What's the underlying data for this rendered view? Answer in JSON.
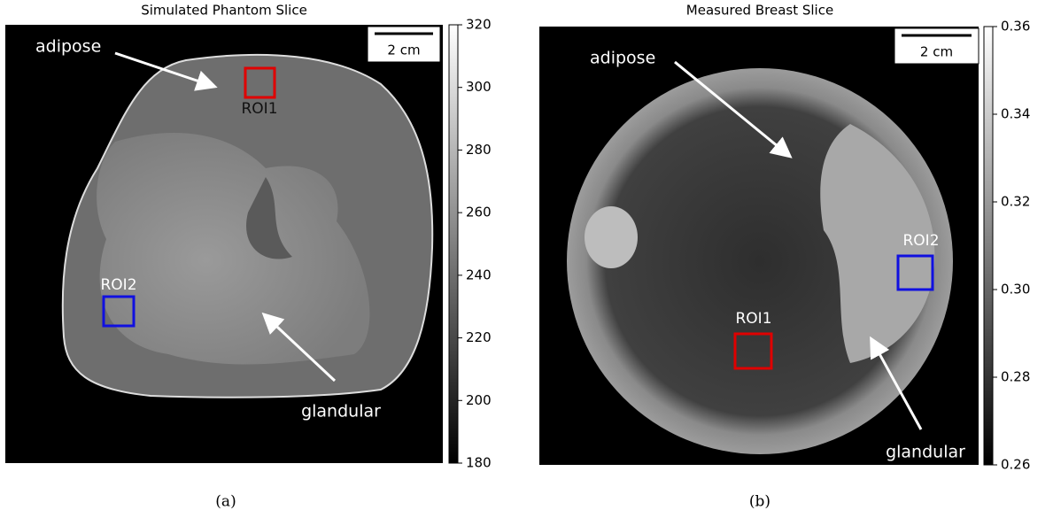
{
  "panels": [
    {
      "title": "Simulated Phantom Slice",
      "caption": "(a)",
      "scale_bar": "2 cm",
      "labels": {
        "adipose": "adipose",
        "glandular": "glandular",
        "roi1": "ROI1",
        "roi2": "ROI2"
      },
      "colorbar": {
        "lim": [
          180,
          320
        ],
        "ticks": [
          180,
          200,
          220,
          240,
          260,
          280,
          300,
          320
        ]
      }
    },
    {
      "title": "Measured Breast Slice",
      "caption": "(b)",
      "scale_bar": "2 cm",
      "labels": {
        "adipose": "adipose",
        "glandular": "glandular",
        "roi1": "ROI1",
        "roi2": "ROI2"
      },
      "colorbar": {
        "lim": [
          0.26,
          0.36
        ],
        "ticks": [
          0.26,
          0.28,
          {
            "value": 0.3,
            "label": "0.30"
          },
          0.32,
          0.34,
          0.36
        ]
      }
    }
  ]
}
